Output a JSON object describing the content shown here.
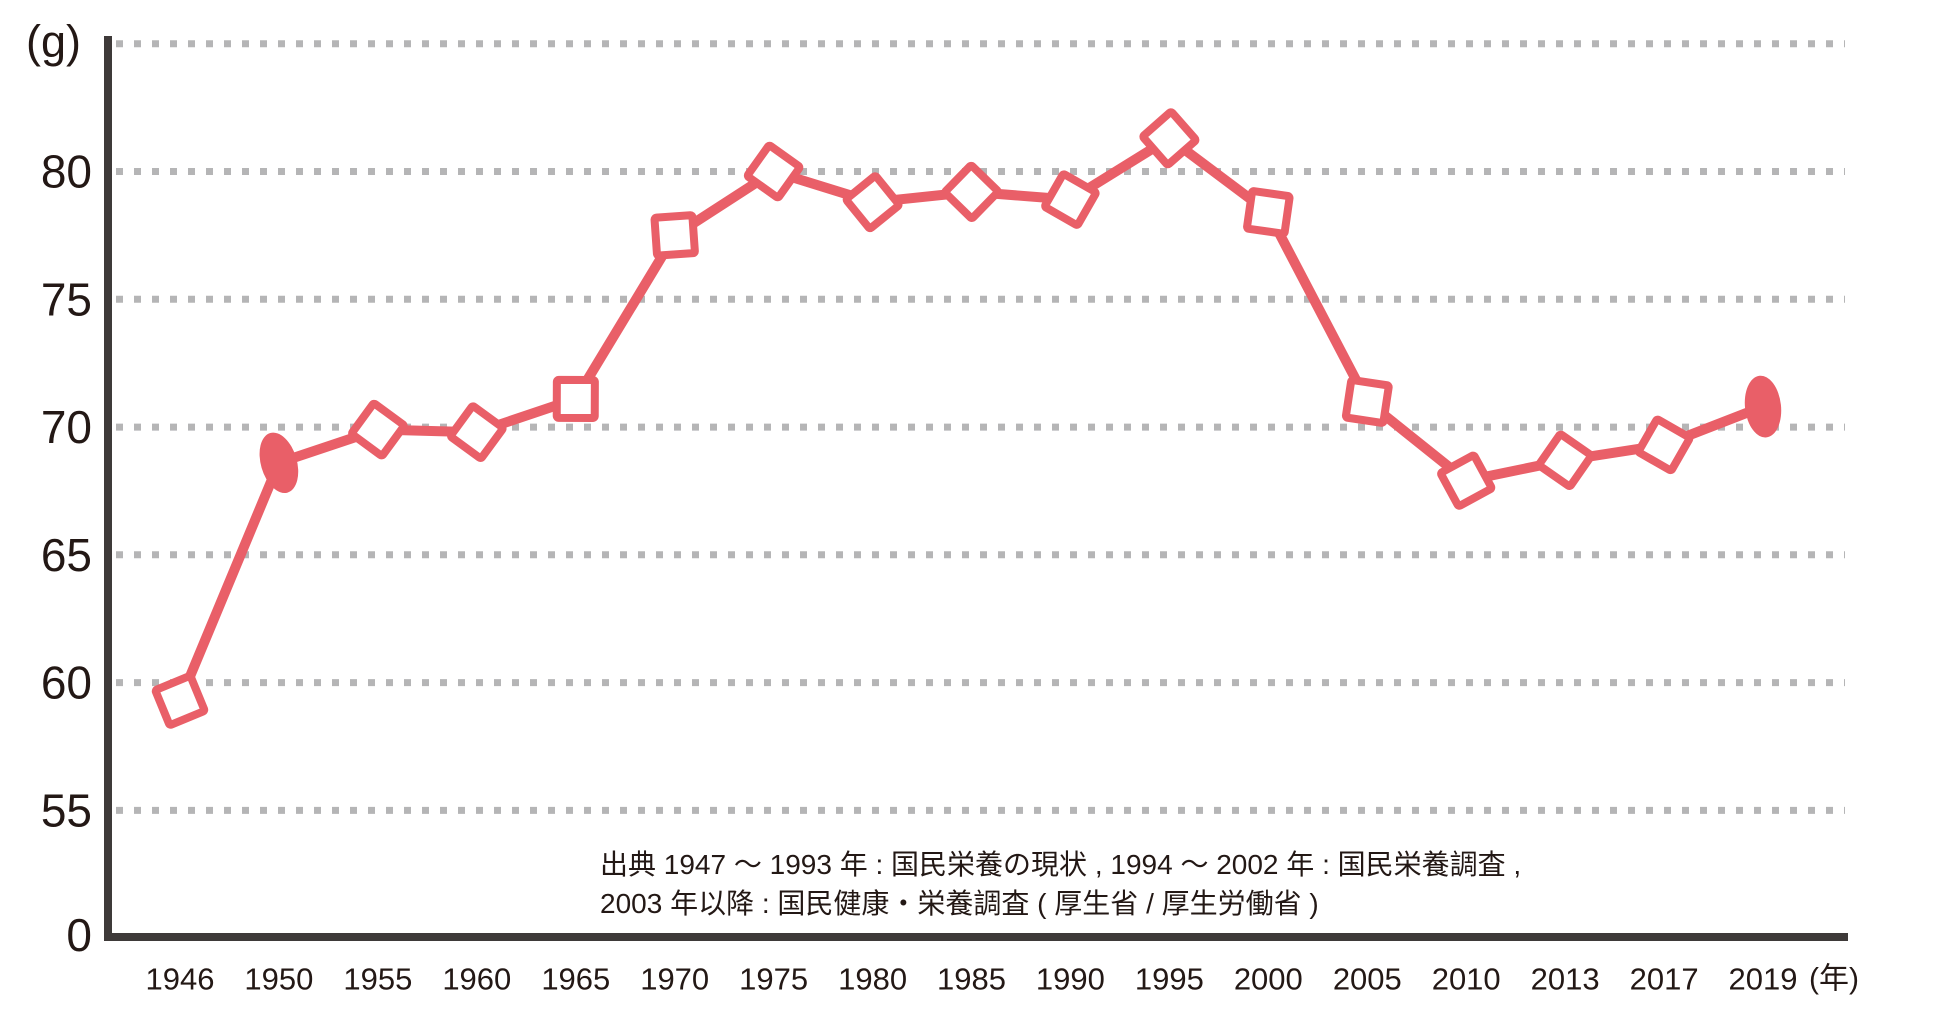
{
  "chart_data": {
    "type": "line",
    "unit_label": "(g)",
    "x_axis_suffix": "(年)",
    "categories": [
      "1946",
      "1950",
      "1955",
      "1960",
      "1965",
      "1970",
      "1975",
      "1980",
      "1985",
      "1990",
      "1995",
      "2000",
      "2005",
      "2010",
      "2013",
      "2017",
      "2019"
    ],
    "values": [
      59.3,
      68.6,
      69.9,
      69.8,
      71.1,
      77.5,
      80.0,
      78.8,
      79.2,
      78.9,
      81.3,
      78.4,
      71.0,
      67.9,
      68.7,
      69.3,
      70.8
    ],
    "markers": [
      "diamond",
      "oval",
      "diamond",
      "diamond",
      "diamond",
      "diamond",
      "diamond",
      "diamond",
      "diamond",
      "diamond",
      "diamond",
      "diamond",
      "diamond",
      "diamond",
      "diamond",
      "diamond",
      "oval"
    ],
    "y_ticks": [
      "80",
      "75",
      "70",
      "65",
      "60",
      "55"
    ],
    "y_tick_values": [
      80,
      75,
      70,
      65,
      60,
      55
    ],
    "zero_label": "0",
    "ylim": [
      55,
      85
    ],
    "axis_break_0_to_55": true,
    "grid": "horizontal-dotted",
    "legend": "none",
    "colors": {
      "line": "#e95f68",
      "marker_fill": "#ffffff",
      "grid": "#b5b5b6",
      "axis": "#3e3a39",
      "text": "#231815"
    }
  },
  "source_note": {
    "line1": "出典 1947 ～ 1993 年 : 国民栄養の現状 , 1994 ～ 2002 年 : 国民栄養調査 ,",
    "line2": "2003 年以降 : 国民健康・栄養調査 ( 厚生省 / 厚生労働省 )"
  }
}
